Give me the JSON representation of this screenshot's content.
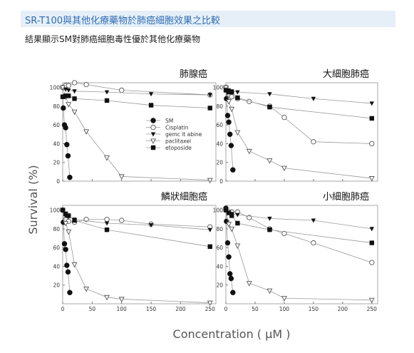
{
  "header": {
    "title": "SR-T100與其他化療藥物於肺癌細胞效果之比較",
    "subtitle": "結果顯示SM對肺癌細胞毒性優於其他化療藥物"
  },
  "figure": {
    "ylabel": "Survival (%)",
    "xlabel": "Concentration ( μM )",
    "legend": [
      {
        "name": "SM",
        "marker": "filled-circle"
      },
      {
        "name": "Cisplatin",
        "marker": "open-circle"
      },
      {
        "name": "gemc it abine",
        "marker": "filled-triangle-down"
      },
      {
        "name": "paclitaxel",
        "marker": "open-triangle-down"
      },
      {
        "name": "etoposide",
        "marker": "filled-square"
      }
    ]
  },
  "chart_data": [
    {
      "type": "line",
      "title": "肺腺癌",
      "xlim": [
        0,
        260
      ],
      "ylim": [
        0,
        105
      ],
      "xticks": [
        0,
        50,
        100,
        150,
        200,
        250
      ],
      "yticks": [
        0,
        20,
        40,
        60,
        80,
        100
      ],
      "show_xticks": false,
      "series": [
        {
          "name": "SM",
          "x": [
            0,
            1,
            3,
            5,
            7,
            9,
            12
          ],
          "y": [
            100,
            78,
            60,
            57,
            39,
            27,
            4
          ]
        },
        {
          "name": "Cisplatin",
          "x": [
            0,
            5,
            10,
            20,
            40,
            100,
            250
          ],
          "y": [
            100,
            102,
            102,
            105,
            103,
            97,
            92
          ]
        },
        {
          "name": "gemc it abine",
          "x": [
            0,
            5,
            10,
            20,
            75,
            150,
            250
          ],
          "y": [
            100,
            98,
            97,
            96,
            95,
            93,
            92
          ]
        },
        {
          "name": "paclitaxel",
          "x": [
            0,
            5,
            10,
            20,
            40,
            75,
            100,
            250
          ],
          "y": [
            100,
            90,
            82,
            74,
            53,
            25,
            5,
            1
          ]
        },
        {
          "name": "etoposide",
          "x": [
            0,
            5,
            10,
            20,
            75,
            150,
            250
          ],
          "y": [
            90,
            91,
            91,
            88,
            86,
            81,
            78
          ]
        }
      ]
    },
    {
      "type": "line",
      "title": "大細胞肺癌",
      "xlim": [
        0,
        260
      ],
      "ylim": [
        0,
        105
      ],
      "xticks": [
        0,
        50,
        100,
        150,
        200,
        250
      ],
      "yticks": [
        0,
        20,
        40,
        60,
        80,
        100
      ],
      "show_xticks": false,
      "series": [
        {
          "name": "SM",
          "x": [
            0,
            1,
            3,
            5,
            7,
            9,
            12
          ],
          "y": [
            100,
            88,
            70,
            63,
            50,
            38,
            12
          ]
        },
        {
          "name": "Cisplatin",
          "x": [
            0,
            5,
            10,
            20,
            40,
            75,
            100,
            150,
            250
          ],
          "y": [
            100,
            93,
            90,
            88,
            85,
            80,
            68,
            42,
            40
          ]
        },
        {
          "name": "gemc it abine",
          "x": [
            0,
            5,
            10,
            20,
            75,
            150,
            250
          ],
          "y": [
            100,
            97,
            96,
            95,
            93,
            88,
            83
          ]
        },
        {
          "name": "paclitaxel",
          "x": [
            0,
            5,
            10,
            20,
            40,
            75,
            100,
            250
          ],
          "y": [
            100,
            85,
            77,
            52,
            32,
            22,
            14,
            3
          ]
        },
        {
          "name": "etoposide",
          "x": [
            0,
            5,
            10,
            20,
            75,
            250
          ],
          "y": [
            97,
            95,
            95,
            89,
            79,
            67
          ]
        }
      ]
    },
    {
      "type": "line",
      "title": "鱗狀細胞癌",
      "xlim": [
        0,
        260
      ],
      "ylim": [
        0,
        105
      ],
      "xticks": [
        0,
        50,
        100,
        150,
        200,
        250
      ],
      "yticks": [
        20,
        40,
        60,
        80,
        100
      ],
      "show_xticks": true,
      "series": [
        {
          "name": "SM",
          "x": [
            0,
            1,
            3,
            5,
            7,
            9,
            12
          ],
          "y": [
            100,
            87,
            64,
            58,
            41,
            34,
            12
          ]
        },
        {
          "name": "Cisplatin",
          "x": [
            0,
            5,
            10,
            20,
            40,
            75,
            100,
            150,
            250
          ],
          "y": [
            100,
            90,
            88,
            87,
            90,
            90,
            89,
            85,
            82
          ]
        },
        {
          "name": "gemc it abine",
          "x": [
            0,
            5,
            10,
            20,
            75,
            150,
            250
          ],
          "y": [
            100,
            94,
            93,
            90,
            86,
            84,
            79
          ]
        },
        {
          "name": "paclitaxel",
          "x": [
            0,
            5,
            10,
            20,
            40,
            75,
            100,
            250
          ],
          "y": [
            100,
            86,
            77,
            42,
            16,
            7,
            5,
            1
          ]
        },
        {
          "name": "etoposide",
          "x": [
            0,
            5,
            10,
            20,
            75,
            250
          ],
          "y": [
            100,
            96,
            94,
            89,
            79,
            61
          ]
        }
      ]
    },
    {
      "type": "line",
      "title": "小細胞肺癌",
      "xlim": [
        0,
        260
      ],
      "ylim": [
        0,
        105
      ],
      "xticks": [
        0,
        50,
        100,
        150,
        200,
        250
      ],
      "yticks": [
        20,
        40,
        60,
        80,
        100
      ],
      "show_xticks": true,
      "series": [
        {
          "name": "SM",
          "x": [
            0,
            1,
            3,
            5,
            7,
            9,
            12
          ],
          "y": [
            102,
            88,
            65,
            50,
            32,
            27,
            12
          ]
        },
        {
          "name": "Cisplatin",
          "x": [
            0,
            5,
            10,
            20,
            40,
            75,
            100,
            150,
            250
          ],
          "y": [
            100,
            98,
            98,
            98,
            92,
            80,
            75,
            65,
            44
          ]
        },
        {
          "name": "gemc it abine",
          "x": [
            0,
            5,
            10,
            20,
            75,
            150,
            250
          ],
          "y": [
            100,
            97,
            96,
            95,
            91,
            89,
            80
          ]
        },
        {
          "name": "paclitaxel",
          "x": [
            0,
            5,
            10,
            20,
            40,
            75,
            100,
            250
          ],
          "y": [
            100,
            85,
            80,
            62,
            22,
            14,
            6,
            4
          ]
        },
        {
          "name": "etoposide",
          "x": [
            0,
            5,
            10,
            20,
            75,
            250
          ],
          "y": [
            100,
            97,
            94,
            86,
            79,
            65
          ]
        }
      ]
    }
  ]
}
